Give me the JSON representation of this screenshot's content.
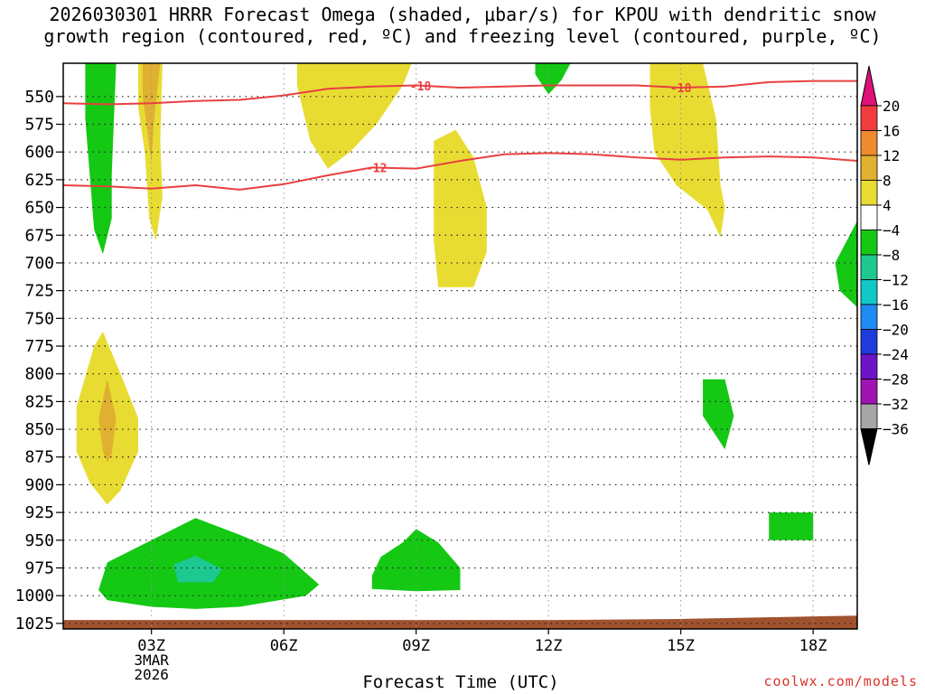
{
  "title_line1": "2026030301 HRRR Forecast Omega (shaded, μbar/s) for KPOU with dendritic snow",
  "title_line2": "growth region (contoured, red, ºC) and freezing level (contoured, purple, ºC)",
  "credit": "coolwx.com/models",
  "chart_data": {
    "type": "heatmap",
    "title": "2026030301 HRRR Forecast Omega (shaded, μbar/s) for KPOU with dendritic snow growth region (contoured, red, ºC) and freezing level (contoured, purple, ºC)",
    "xlabel": "Forecast Time (UTC)",
    "ylabel": "",
    "x_range_hours_since_00z": [
      1,
      19
    ],
    "y_range_hpa": [
      1030,
      520
    ],
    "y_ticks": [
      550,
      575,
      600,
      625,
      650,
      675,
      700,
      725,
      750,
      775,
      800,
      825,
      850,
      875,
      900,
      925,
      950,
      975,
      1000,
      1025
    ],
    "x_ticks": [
      {
        "h": 3,
        "label": "03Z",
        "sub1": "3MAR",
        "sub2": "2026"
      },
      {
        "h": 6,
        "label": "06Z"
      },
      {
        "h": 9,
        "label": "09Z"
      },
      {
        "h": 12,
        "label": "12Z"
      },
      {
        "h": 15,
        "label": "15Z"
      },
      {
        "h": 18,
        "label": "18Z"
      }
    ],
    "colorbar": {
      "levels": [
        20,
        16,
        12,
        8,
        4,
        -4,
        -8,
        -12,
        -16,
        -20,
        -24,
        -28,
        -32,
        -36
      ],
      "colors": [
        "#f23c3c",
        "#ef8a2e",
        "#e0b030",
        "#e8dc33",
        "#ffffff",
        "#14c814",
        "#1ec891",
        "#10c8c8",
        "#1e8cf0",
        "#1e3cdc",
        "#6e14c8",
        "#a014b4",
        "#a6a6a6"
      ],
      "top_color": "#e0107a",
      "bottom_color": "#000000"
    },
    "contours": [
      {
        "label": "-18",
        "color": "#e84040",
        "points": [
          [
            1,
            556
          ],
          [
            2,
            557
          ],
          [
            3,
            556
          ],
          [
            4,
            554
          ],
          [
            5,
            553
          ],
          [
            6,
            549
          ],
          [
            7,
            543
          ],
          [
            8,
            541
          ],
          [
            9,
            540
          ],
          [
            10,
            542
          ],
          [
            11,
            541
          ],
          [
            12,
            540
          ],
          [
            13,
            540
          ],
          [
            14,
            540
          ],
          [
            15,
            542
          ],
          [
            16,
            541
          ],
          [
            17,
            537
          ],
          [
            18,
            536
          ],
          [
            19,
            536
          ]
        ],
        "label_at_h": [
          9.1,
          15.0
        ]
      },
      {
        "label": "-12",
        "color": "#e84040",
        "points": [
          [
            1,
            630
          ],
          [
            2,
            631
          ],
          [
            3,
            633
          ],
          [
            4,
            630
          ],
          [
            5,
            634
          ],
          [
            6,
            629
          ],
          [
            7,
            621
          ],
          [
            8,
            614
          ],
          [
            9,
            615
          ],
          [
            10,
            608
          ],
          [
            11,
            602
          ],
          [
            12,
            601
          ],
          [
            13,
            602
          ],
          [
            14,
            605
          ],
          [
            15,
            607
          ],
          [
            16,
            605
          ],
          [
            17,
            604
          ],
          [
            18,
            605
          ],
          [
            19,
            608
          ]
        ],
        "label_at_h": [
          8.1
        ]
      }
    ],
    "shaded_regions": [
      {
        "value": -6,
        "points": [
          [
            1.5,
            520
          ],
          [
            2.2,
            520
          ],
          [
            2.1,
            620
          ],
          [
            2.1,
            660
          ],
          [
            1.9,
            692
          ],
          [
            1.7,
            670
          ],
          [
            1.6,
            620
          ],
          [
            1.5,
            570
          ]
        ]
      },
      {
        "value": 6,
        "points": [
          [
            2.7,
            520
          ],
          [
            3.25,
            520
          ],
          [
            3.2,
            590
          ],
          [
            3.25,
            640
          ],
          [
            3.1,
            680
          ],
          [
            2.95,
            660
          ],
          [
            2.85,
            600
          ],
          [
            2.7,
            560
          ]
        ]
      },
      {
        "value": 10,
        "points": [
          [
            2.8,
            520
          ],
          [
            3.2,
            520
          ],
          [
            3.05,
            575
          ],
          [
            3.0,
            610
          ],
          [
            2.92,
            585
          ],
          [
            2.8,
            550
          ]
        ]
      },
      {
        "value": 6,
        "points": [
          [
            6.3,
            520
          ],
          [
            8.9,
            520
          ],
          [
            8.7,
            540
          ],
          [
            8.1,
            575
          ],
          [
            7.5,
            600
          ],
          [
            7.0,
            615
          ],
          [
            6.6,
            590
          ],
          [
            6.3,
            540
          ]
        ]
      },
      {
        "value": 6,
        "points": [
          [
            9.4,
            590
          ],
          [
            9.9,
            580
          ],
          [
            10.3,
            605
          ],
          [
            10.6,
            650
          ],
          [
            10.6,
            690
          ],
          [
            10.3,
            722
          ],
          [
            9.5,
            722
          ],
          [
            9.4,
            680
          ],
          [
            9.4,
            640
          ]
        ]
      },
      {
        "value": -6,
        "points": [
          [
            11.7,
            520
          ],
          [
            12.5,
            520
          ],
          [
            12.3,
            535
          ],
          [
            12.0,
            548
          ],
          [
            11.7,
            530
          ]
        ]
      },
      {
        "value": 6,
        "points": [
          [
            14.3,
            520
          ],
          [
            15.5,
            520
          ],
          [
            15.8,
            570
          ],
          [
            15.9,
            630
          ],
          [
            16.0,
            650
          ],
          [
            15.9,
            677
          ],
          [
            15.6,
            652
          ],
          [
            14.9,
            630
          ],
          [
            14.4,
            600
          ],
          [
            14.3,
            560
          ]
        ]
      },
      {
        "value": -6,
        "points": [
          [
            19,
            662
          ],
          [
            19,
            740
          ],
          [
            18.6,
            725
          ],
          [
            18.5,
            700
          ]
        ]
      },
      {
        "value": 6,
        "points": [
          [
            1.3,
            830
          ],
          [
            1.7,
            775
          ],
          [
            1.9,
            762
          ],
          [
            2.3,
            800
          ],
          [
            2.7,
            840
          ],
          [
            2.7,
            870
          ],
          [
            2.3,
            905
          ],
          [
            2.0,
            918
          ],
          [
            1.6,
            898
          ],
          [
            1.3,
            870
          ]
        ]
      },
      {
        "value": 10,
        "points": [
          [
            1.8,
            840
          ],
          [
            2.0,
            805
          ],
          [
            2.2,
            840
          ],
          [
            2.1,
            872
          ],
          [
            2.0,
            880
          ],
          [
            1.9,
            870
          ]
        ]
      },
      {
        "value": -6,
        "points": [
          [
            15.5,
            805
          ],
          [
            16.0,
            805
          ],
          [
            16.2,
            838
          ],
          [
            16.0,
            868
          ],
          [
            15.5,
            838
          ]
        ]
      },
      {
        "value": -6,
        "points": [
          [
            17.0,
            925
          ],
          [
            18.0,
            925
          ],
          [
            18.0,
            950
          ],
          [
            17.0,
            950
          ]
        ]
      },
      {
        "value": -6,
        "points": [
          [
            1.8,
            995
          ],
          [
            2.0,
            970
          ],
          [
            3.0,
            950
          ],
          [
            4.0,
            930
          ],
          [
            5.0,
            945
          ],
          [
            6.0,
            962
          ],
          [
            6.8,
            990
          ],
          [
            6.5,
            1000
          ],
          [
            5.0,
            1010
          ],
          [
            4.0,
            1012
          ],
          [
            3.0,
            1010
          ],
          [
            2.0,
            1004
          ]
        ]
      },
      {
        "value": -10,
        "points": [
          [
            3.5,
            972
          ],
          [
            4.0,
            964
          ],
          [
            4.6,
            976
          ],
          [
            4.4,
            988
          ],
          [
            3.6,
            988
          ]
        ]
      },
      {
        "value": -6,
        "points": [
          [
            8.0,
            982
          ],
          [
            8.2,
            965
          ],
          [
            8.7,
            952
          ],
          [
            9.0,
            940
          ],
          [
            9.5,
            952
          ],
          [
            10.0,
            975
          ],
          [
            10.0,
            995
          ],
          [
            9.0,
            996
          ],
          [
            8.0,
            994
          ]
        ]
      }
    ],
    "terrain": {
      "color": "#a0522d",
      "top_left_hpa": 1022,
      "top_right_hpa": 1018
    }
  }
}
